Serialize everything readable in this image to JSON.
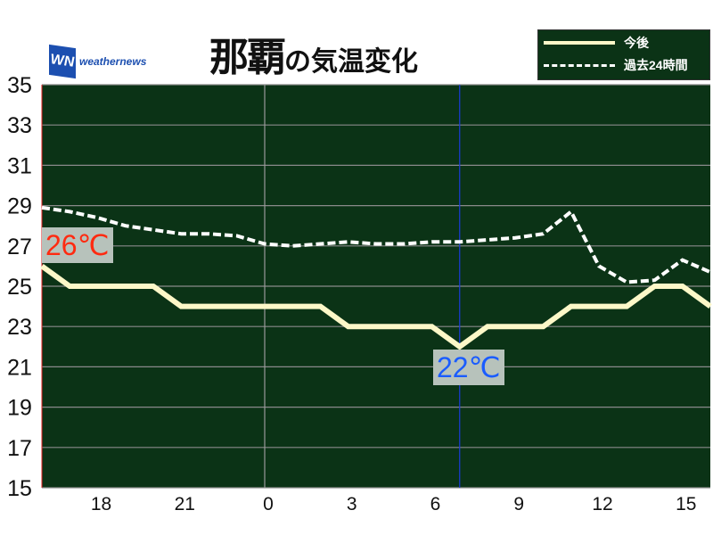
{
  "title": {
    "place": "那覇",
    "suffix": "の気温変化"
  },
  "logo": {
    "mark": "WN",
    "text": "weathernews"
  },
  "legend": {
    "future": "今後",
    "past": "過去24時間"
  },
  "colors": {
    "background": "#0b3316",
    "future": "#fdf8c8",
    "past": "#ffffff",
    "max_label": "#ff2a10",
    "min_label": "#1a5cff",
    "now_line": "#1a3cd8"
  },
  "callouts": {
    "max": "26℃",
    "min": "22℃"
  },
  "chart_data": {
    "type": "line",
    "ylim": [
      15,
      35
    ],
    "yticks": [
      35,
      33,
      31,
      29,
      27,
      25,
      23,
      21,
      19,
      17,
      15
    ],
    "x_hours": [
      "16",
      "17",
      "18",
      "19",
      "20",
      "21",
      "22",
      "23",
      "0",
      "1",
      "2",
      "3",
      "4",
      "5",
      "6",
      "7",
      "8",
      "9",
      "10",
      "11",
      "12",
      "13",
      "14",
      "15",
      "16"
    ],
    "xtick_labels": [
      "18",
      "21",
      "0",
      "3",
      "6",
      "9",
      "12",
      "15"
    ],
    "grid": true,
    "legend_placement": "top-right",
    "series": [
      {
        "name": "今後",
        "style": "solid",
        "values": [
          26,
          25,
          25,
          25,
          25,
          24,
          24,
          24,
          24,
          24,
          24,
          23,
          23,
          23,
          23,
          22,
          23,
          23,
          23,
          24,
          24,
          24,
          25,
          25,
          24
        ]
      },
      {
        "name": "過去24時間",
        "style": "dashed",
        "values": [
          28.9,
          28.7,
          28.4,
          28.0,
          27.8,
          27.6,
          27.6,
          27.5,
          27.1,
          27.0,
          27.1,
          27.2,
          27.1,
          27.1,
          27.2,
          27.2,
          27.3,
          27.4,
          27.6,
          28.7,
          26.0,
          25.2,
          25.3,
          26.3,
          25.7
        ]
      }
    ]
  }
}
